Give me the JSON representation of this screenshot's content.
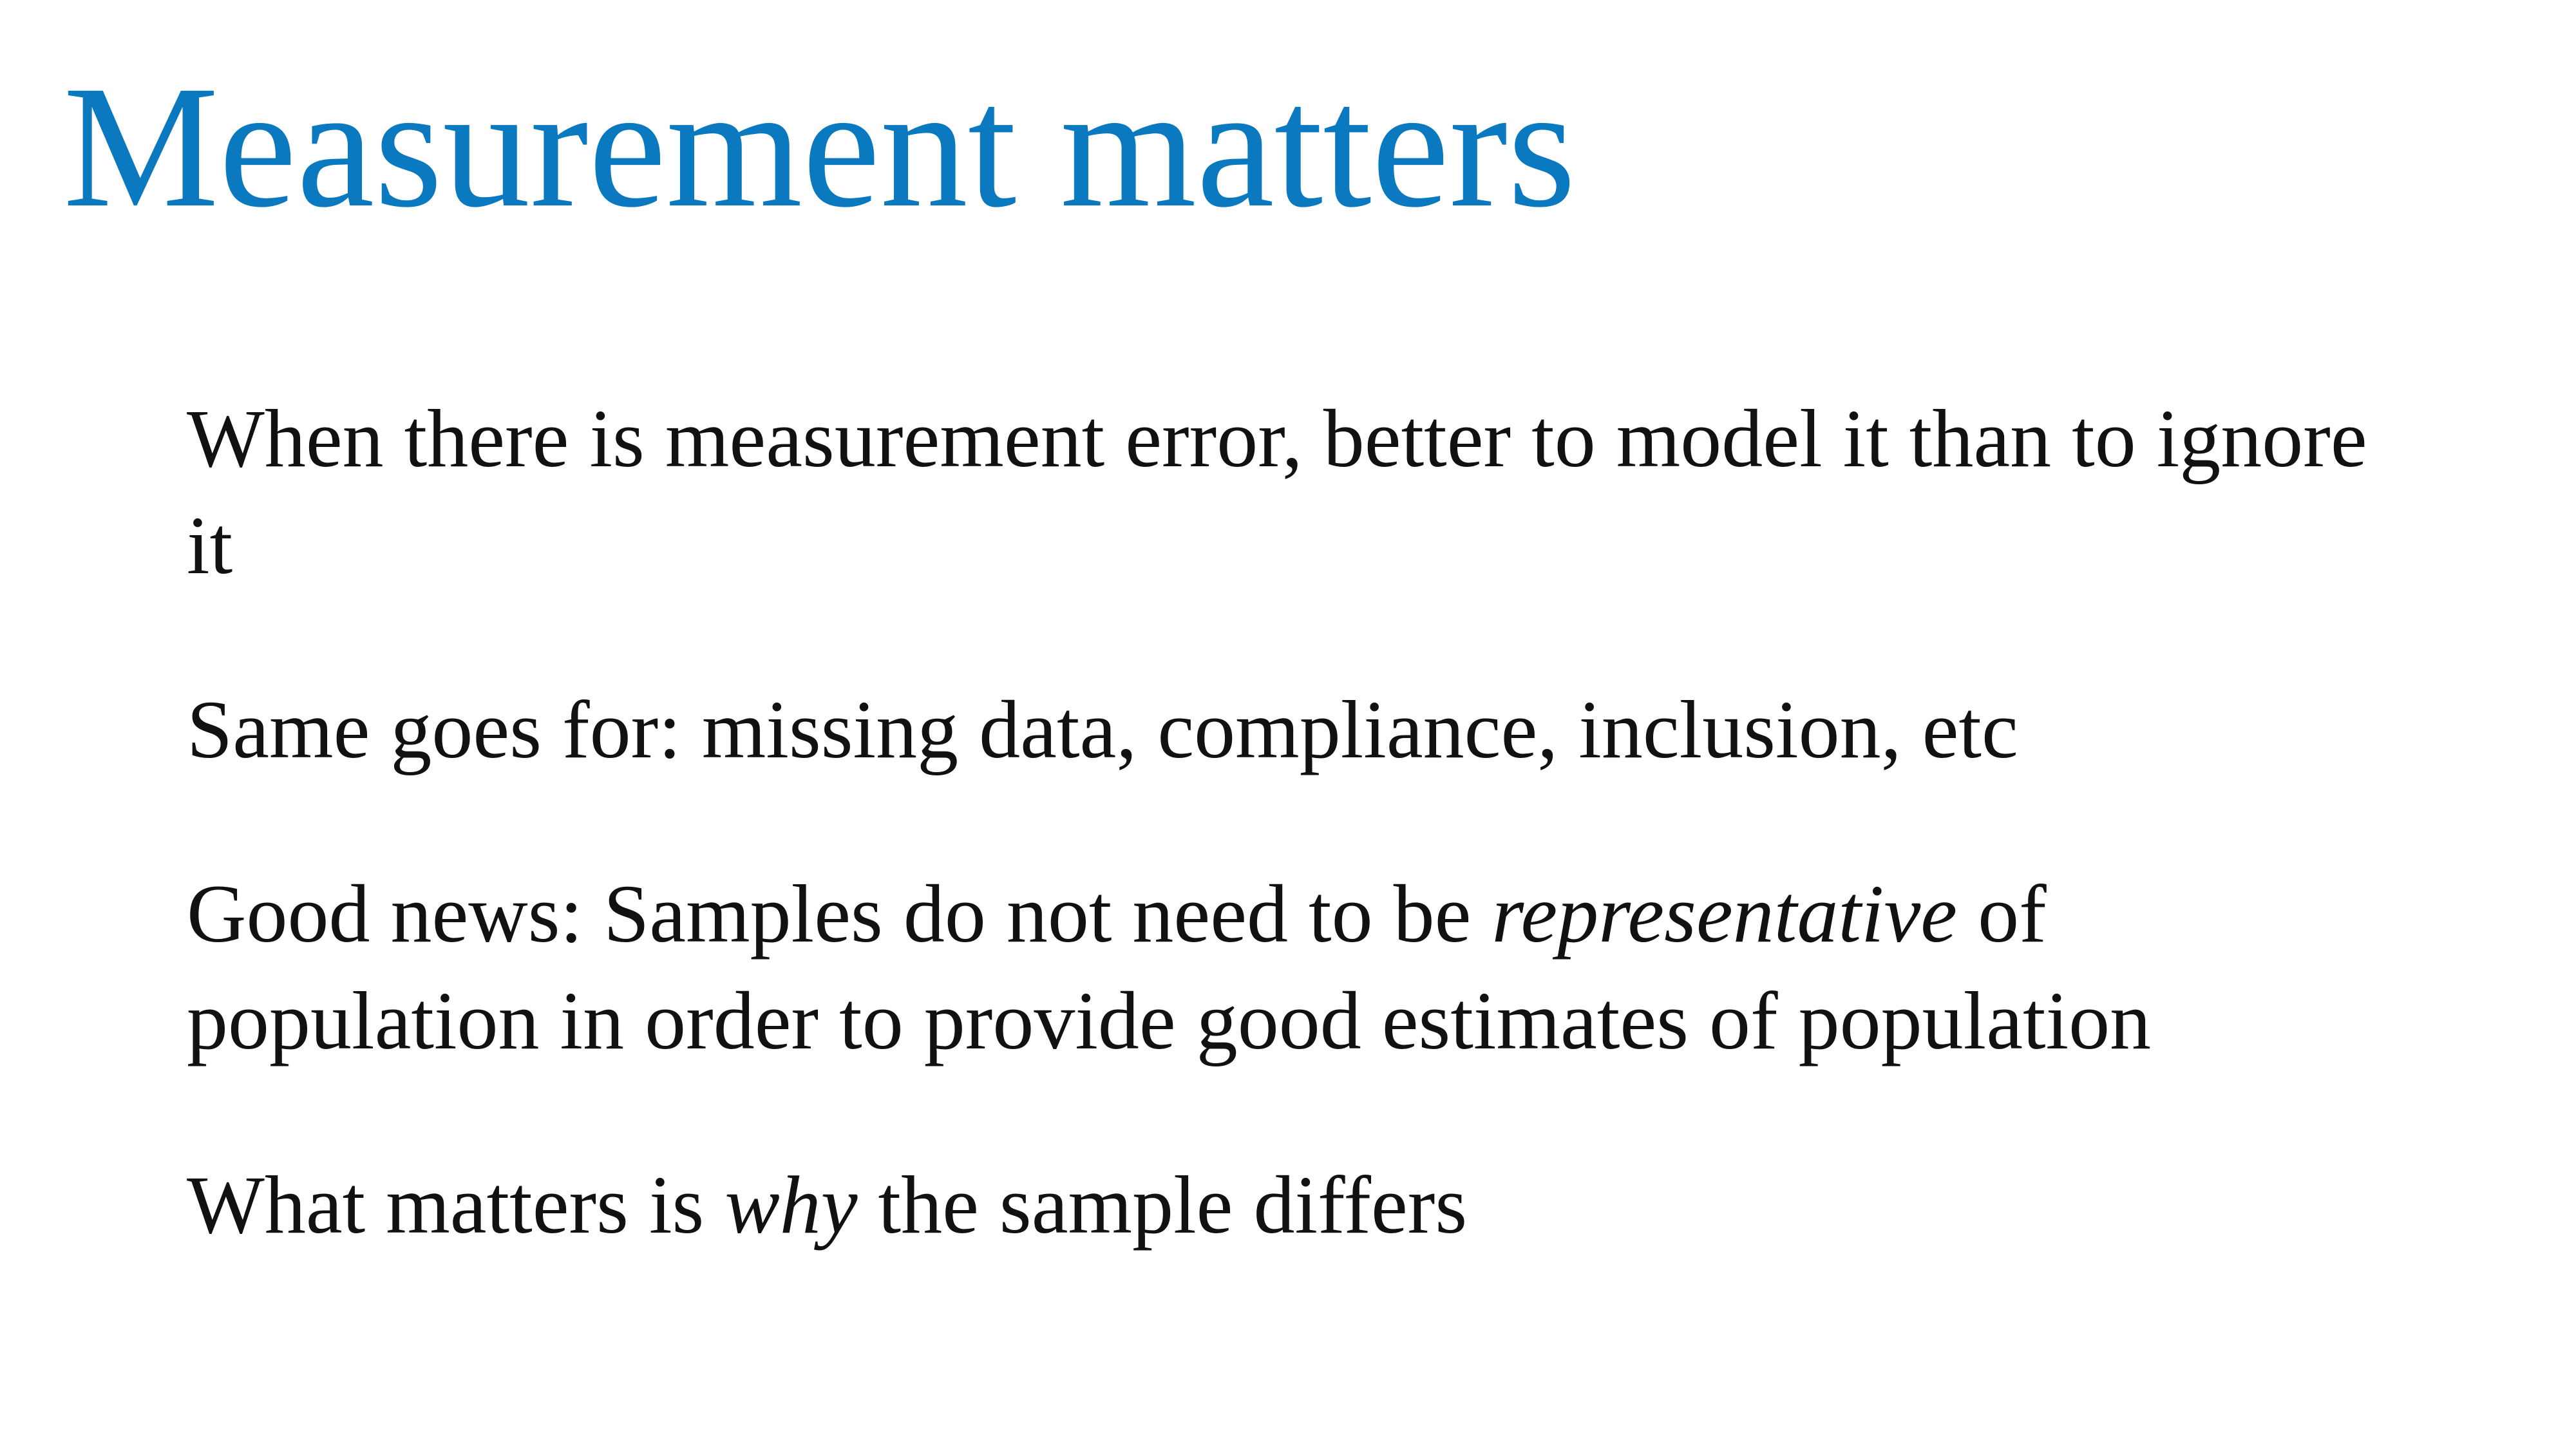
{
  "slide": {
    "title": "Measurement matters",
    "title_color": "#0a79bf",
    "text_color": "#111111",
    "bullets": [
      {
        "text": "When there is measurement error, better to model it than to ignore it"
      },
      {
        "text": "Same goes for: missing data, compliance, inclusion, etc"
      },
      {
        "before": "Good news: Samples do not need to be ",
        "emphasis": "representative",
        "after": " of population in order to provide good estimates of population"
      },
      {
        "before": "What matters is ",
        "emphasis": "why",
        "after": " the sample differs"
      }
    ]
  }
}
